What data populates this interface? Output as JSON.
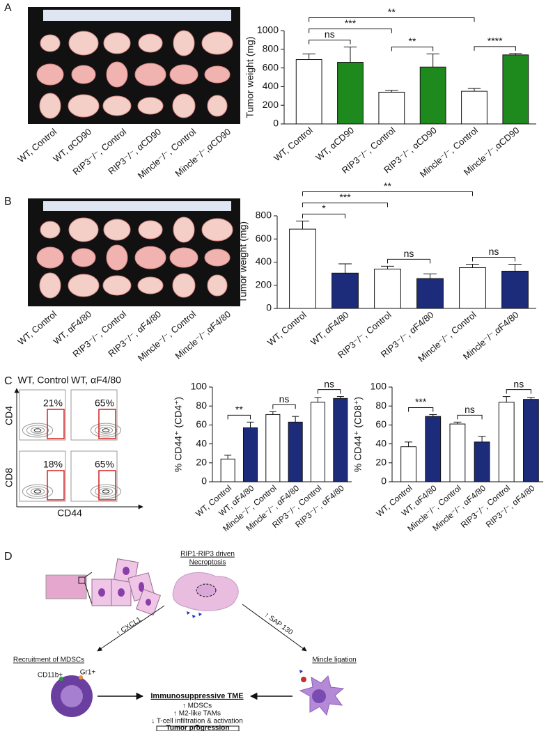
{
  "panel_labels": [
    "A",
    "B",
    "C",
    "D"
  ],
  "chart_data": [
    {
      "type": "bar",
      "y_label": "Tumor weight (mg)",
      "categories": [
        "WT, Control",
        "WT, αCD90",
        "RIP3⁻/⁻, Control",
        "RIP3⁻/⁻, αCD90",
        "Mincle⁻/⁻, Control",
        "Mincle⁻/⁻,αCD90"
      ],
      "values": [
        690,
        660,
        340,
        610,
        350,
        740
      ],
      "errors": [
        60,
        165,
        20,
        140,
        30,
        15
      ],
      "colors": [
        "#ffffff",
        "#1e8a1e",
        "#ffffff",
        "#1e8a1e",
        "#ffffff",
        "#1e8a1e"
      ],
      "ylim": [
        0,
        1000
      ],
      "yticks": [
        0,
        200,
        400,
        600,
        800,
        1000
      ],
      "annotations": [
        {
          "from": 0,
          "to": 1,
          "text": "ns"
        },
        {
          "from": 2,
          "to": 3,
          "text": "**"
        },
        {
          "from": 4,
          "to": 5,
          "text": "****"
        },
        {
          "from": 0,
          "to": 2,
          "text": "***"
        },
        {
          "from": 0,
          "to": 4,
          "text": "**"
        }
      ]
    },
    {
      "type": "bar",
      "y_label": "Tumor weight (mg)",
      "categories": [
        "WT, Control",
        "WT, αF4/80",
        "RIP3⁻/⁻, Control",
        "RIP3⁻/⁻, αF4/80",
        "Mincle⁻/⁻, Control",
        "Mincle⁻/⁻,αF4/80"
      ],
      "values": [
        685,
        305,
        340,
        258,
        352,
        322
      ],
      "errors": [
        70,
        80,
        25,
        40,
        30,
        60
      ],
      "colors": [
        "#ffffff",
        "#1c2b7a",
        "#ffffff",
        "#1c2b7a",
        "#ffffff",
        "#1c2b7a"
      ],
      "ylim": [
        0,
        800
      ],
      "yticks": [
        0,
        200,
        400,
        600,
        800
      ],
      "annotations": [
        {
          "from": 0,
          "to": 1,
          "text": "*"
        },
        {
          "from": 2,
          "to": 3,
          "text": "ns"
        },
        {
          "from": 4,
          "to": 5,
          "text": "ns"
        },
        {
          "from": 0,
          "to": 2,
          "text": "***"
        },
        {
          "from": 0,
          "to": 4,
          "text": "**"
        }
      ]
    },
    {
      "type": "bar",
      "y_label": "% CD44⁺ (CD4⁺)",
      "categories": [
        "WT, Control",
        "WT, αF4/80",
        "Mincle⁻/⁻, Control",
        "Mincle⁻/⁻, αF4/80",
        "RIP3⁻/⁻, Control",
        "RIP3⁻/⁻, αF4/80"
      ],
      "values": [
        24,
        57,
        71,
        63,
        84,
        88
      ],
      "errors": [
        4,
        6,
        3,
        6,
        5,
        2
      ],
      "colors": [
        "#ffffff",
        "#1c2b7a",
        "#ffffff",
        "#1c2b7a",
        "#ffffff",
        "#1c2b7a"
      ],
      "ylim": [
        0,
        100
      ],
      "yticks": [
        0,
        20,
        40,
        60,
        80,
        100
      ],
      "annotations": [
        {
          "from": 0,
          "to": 1,
          "text": "**"
        },
        {
          "from": 2,
          "to": 3,
          "text": "ns"
        },
        {
          "from": 4,
          "to": 5,
          "text": "ns"
        }
      ]
    },
    {
      "type": "bar",
      "y_label": "% CD44⁺ (CD8⁺)",
      "categories": [
        "WT, Control",
        "WT, αF4/80",
        "Mincle⁻/⁻, Control",
        "Mincle⁻/⁻, αF4/80",
        "RIP3⁻/⁻, Control",
        "RIP3⁻/⁻, αF4/80"
      ],
      "values": [
        37,
        69,
        61,
        42,
        84,
        87
      ],
      "errors": [
        5,
        2,
        2,
        6,
        6,
        2
      ],
      "colors": [
        "#ffffff",
        "#1c2b7a",
        "#ffffff",
        "#1c2b7a",
        "#ffffff",
        "#1c2b7a"
      ],
      "ylim": [
        0,
        100
      ],
      "yticks": [
        0,
        20,
        40,
        60,
        80,
        100
      ],
      "annotations": [
        {
          "from": 0,
          "to": 1,
          "text": "***"
        },
        {
          "from": 2,
          "to": 3,
          "text": "ns"
        },
        {
          "from": 4,
          "to": 5,
          "text": "ns"
        }
      ]
    }
  ],
  "flow": {
    "columns": [
      "WT, Control",
      "WT, αF4/80"
    ],
    "rows": [
      "CD4",
      "CD8"
    ],
    "x_label": "CD44",
    "gates": [
      "21%",
      "65%",
      "18%",
      "65%"
    ]
  },
  "diagram": {
    "necroptosis": [
      "RIP1-RIP3 driven",
      "Necroptosis"
    ],
    "left_title": "Recruitment of MDSCs",
    "right_title": "Mincle ligation",
    "left_arrow": "↑ CXCL1",
    "right_arrow": "↑ SAP 130",
    "markers": [
      "CD11b+",
      "Gr1+"
    ],
    "center_title": "Immunosuppressive TME",
    "effects": [
      "↑ MDSCs",
      "↑ M2-like TAMs",
      "↓ T-cell infiltration & activation"
    ],
    "outcome": "Tumor progression"
  }
}
